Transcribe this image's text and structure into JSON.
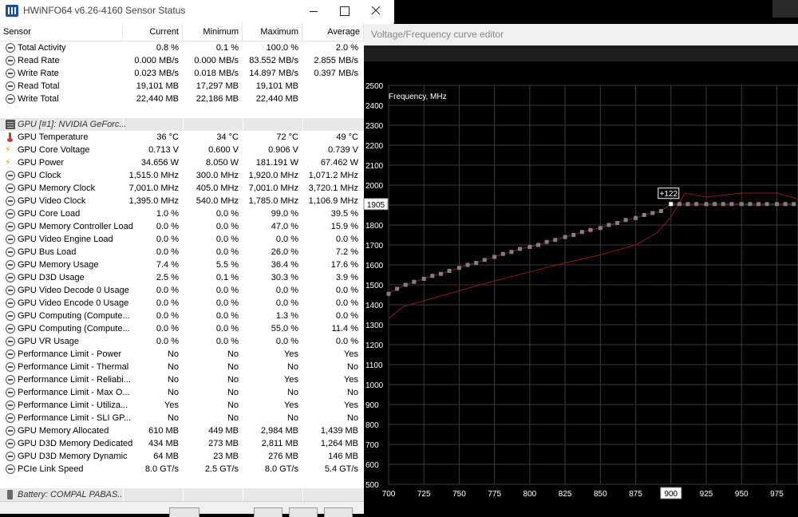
{
  "hwinfo": {
    "title": "HWiNFO64 v6.26-4160 Sensor Status",
    "columns": [
      "Sensor",
      "Current",
      "Minimum",
      "Maximum",
      "Average"
    ],
    "rows": [
      {
        "icon": "clock",
        "name": "Total Activity",
        "cur": "0.8 %",
        "min": "0.1 %",
        "max": "100.0 %",
        "avg": "2.0 %"
      },
      {
        "icon": "clock",
        "name": "Read Rate",
        "cur": "0.000 MB/s",
        "min": "0.000 MB/s",
        "max": "83.552 MB/s",
        "avg": "2.855 MB/s"
      },
      {
        "icon": "clock",
        "name": "Write Rate",
        "cur": "0.023 MB/s",
        "min": "0.018 MB/s",
        "max": "14.897 MB/s",
        "avg": "0.397 MB/s"
      },
      {
        "icon": "clock",
        "name": "Read Total",
        "cur": "19,101 MB",
        "min": "17,297 MB",
        "max": "19,101 MB",
        "avg": ""
      },
      {
        "icon": "clock",
        "name": "Write Total",
        "cur": "22,440 MB",
        "min": "22,186 MB",
        "max": "22,440 MB",
        "avg": ""
      },
      {
        "type": "gap"
      },
      {
        "type": "section",
        "icon": "gpu",
        "name": "GPU [#1]: NVIDIA GeForc..."
      },
      {
        "icon": "therm",
        "name": "GPU Temperature",
        "cur": "36 °C",
        "min": "34 °C",
        "max": "72 °C",
        "avg": "49 °C"
      },
      {
        "icon": "bolt",
        "name": "GPU Core Voltage",
        "cur": "0.713 V",
        "min": "0.600 V",
        "max": "0.906 V",
        "avg": "0.739 V"
      },
      {
        "icon": "bolt",
        "name": "GPU Power",
        "cur": "34.656 W",
        "min": "8.050 W",
        "max": "181.191 W",
        "avg": "67.462 W"
      },
      {
        "icon": "clock",
        "name": "GPU Clock",
        "cur": "1,515.0 MHz",
        "min": "300.0 MHz",
        "max": "1,920.0 MHz",
        "avg": "1,071.2 MHz"
      },
      {
        "icon": "clock",
        "name": "GPU Memory Clock",
        "cur": "7,001.0 MHz",
        "min": "405.0 MHz",
        "max": "7,001.0 MHz",
        "avg": "3,720.1 MHz"
      },
      {
        "icon": "clock",
        "name": "GPU Video Clock",
        "cur": "1,395.0 MHz",
        "min": "540.0 MHz",
        "max": "1,785.0 MHz",
        "avg": "1,106.9 MHz"
      },
      {
        "icon": "clock",
        "name": "GPU Core Load",
        "cur": "1.0 %",
        "min": "0.0 %",
        "max": "99.0 %",
        "avg": "39.5 %"
      },
      {
        "icon": "clock",
        "name": "GPU Memory Controller Load",
        "cur": "0.0 %",
        "min": "0.0 %",
        "max": "47.0 %",
        "avg": "15.9 %"
      },
      {
        "icon": "clock",
        "name": "GPU Video Engine Load",
        "cur": "0.0 %",
        "min": "0.0 %",
        "max": "0.0 %",
        "avg": "0.0 %"
      },
      {
        "icon": "clock",
        "name": "GPU Bus Load",
        "cur": "0.0 %",
        "min": "0.0 %",
        "max": "26.0 %",
        "avg": "7.2 %"
      },
      {
        "icon": "clock",
        "name": "GPU Memory Usage",
        "cur": "7.4 %",
        "min": "5.5 %",
        "max": "36.4 %",
        "avg": "17.6 %"
      },
      {
        "icon": "clock",
        "name": "GPU D3D Usage",
        "cur": "2.5 %",
        "min": "0.1 %",
        "max": "30.3 %",
        "avg": "3.9 %"
      },
      {
        "icon": "clock",
        "name": "GPU Video Decode 0 Usage",
        "cur": "0.0 %",
        "min": "0.0 %",
        "max": "0.0 %",
        "avg": "0.0 %"
      },
      {
        "icon": "clock",
        "name": "GPU Video Encode 0 Usage",
        "cur": "0.0 %",
        "min": "0.0 %",
        "max": "0.0 %",
        "avg": "0.0 %"
      },
      {
        "icon": "clock",
        "name": "GPU Computing (Compute...",
        "cur": "0.0 %",
        "min": "0.0 %",
        "max": "1.3 %",
        "avg": "0.0 %"
      },
      {
        "icon": "clock",
        "name": "GPU Computing (Compute...",
        "cur": "0.0 %",
        "min": "0.0 %",
        "max": "55.0 %",
        "avg": "11.4 %"
      },
      {
        "icon": "clock",
        "name": "GPU VR Usage",
        "cur": "0.0 %",
        "min": "0.0 %",
        "max": "0.0 %",
        "avg": "0.0 %"
      },
      {
        "icon": "clock",
        "name": "Performance Limit - Power",
        "cur": "No",
        "min": "No",
        "max": "Yes",
        "avg": "Yes"
      },
      {
        "icon": "clock",
        "name": "Performance Limit - Thermal",
        "cur": "No",
        "min": "No",
        "max": "No",
        "avg": "No"
      },
      {
        "icon": "clock",
        "name": "Performance Limit - Reliabi...",
        "cur": "No",
        "min": "No",
        "max": "Yes",
        "avg": "Yes"
      },
      {
        "icon": "clock",
        "name": "Performance Limit - Max O...",
        "cur": "No",
        "min": "No",
        "max": "No",
        "avg": "No"
      },
      {
        "icon": "clock",
        "name": "Performance Limit - Utiliza...",
        "cur": "Yes",
        "min": "No",
        "max": "Yes",
        "avg": "Yes"
      },
      {
        "icon": "clock",
        "name": "Performance Limit - SLI GP...",
        "cur": "No",
        "min": "No",
        "max": "No",
        "avg": "No"
      },
      {
        "icon": "clock",
        "name": "GPU Memory Allocated",
        "cur": "610 MB",
        "min": "449 MB",
        "max": "2,984 MB",
        "avg": "1,439 MB"
      },
      {
        "icon": "clock",
        "name": "GPU D3D Memory Dedicated",
        "cur": "434 MB",
        "min": "273 MB",
        "max": "2,811 MB",
        "avg": "1,264 MB"
      },
      {
        "icon": "clock",
        "name": "GPU D3D Memory Dynamic",
        "cur": "64 MB",
        "min": "23 MB",
        "max": "276 MB",
        "avg": "146 MB"
      },
      {
        "icon": "clock",
        "name": "PCIe Link Speed",
        "cur": "8.0 GT/s",
        "min": "2.5 GT/s",
        "max": "8.0 GT/s",
        "avg": "5.4 GT/s"
      },
      {
        "type": "gap"
      },
      {
        "type": "section",
        "icon": "battery",
        "name": "Battery: COMPAL PABAS..."
      }
    ]
  },
  "vf_editor": {
    "title": "Voltage/Frequency curve editor",
    "colors": {
      "curve_line": "#8b1a1a",
      "point": "#808080",
      "selected_point": "#ffffff",
      "grid": "#3a3a3a"
    }
  },
  "chart_data": {
    "type": "line",
    "ylabel": "Frequency, MHz",
    "xlabel": "",
    "xlim": [
      700,
      990
    ],
    "ylim": [
      500,
      2500
    ],
    "x_ticks": [
      700,
      725,
      750,
      775,
      800,
      825,
      850,
      875,
      900,
      925,
      950,
      975
    ],
    "y_ticks": [
      500,
      600,
      700,
      800,
      900,
      1000,
      1100,
      1200,
      1300,
      1400,
      1500,
      1600,
      1700,
      1800,
      1900,
      2000,
      2100,
      2200,
      2300,
      2400,
      2500
    ],
    "highlighted_y": "1905",
    "highlighted_x": "900",
    "point_label": "+122",
    "reference_line_y": 1500,
    "series": [
      {
        "role": "edited-curve",
        "x": [
          700,
          706,
          712,
          718,
          725,
          731,
          737,
          743,
          750,
          756,
          762,
          768,
          775,
          781,
          787,
          793,
          800,
          806,
          812,
          818,
          825,
          831,
          837,
          843,
          850,
          856,
          862,
          868,
          875,
          881,
          887,
          893,
          900,
          906,
          912,
          918,
          925,
          931,
          937,
          943,
          950,
          956,
          962,
          968,
          975,
          981,
          987
        ],
        "y": [
          1455,
          1480,
          1500,
          1515,
          1530,
          1545,
          1555,
          1570,
          1585,
          1600,
          1610,
          1625,
          1640,
          1655,
          1665,
          1680,
          1690,
          1700,
          1715,
          1725,
          1740,
          1750,
          1765,
          1775,
          1785,
          1800,
          1810,
          1825,
          1835,
          1850,
          1860,
          1870,
          1905,
          1905,
          1905,
          1905,
          1905,
          1905,
          1905,
          1905,
          1905,
          1905,
          1905,
          1905,
          1905,
          1905,
          1905
        ]
      },
      {
        "role": "base-curve",
        "x": [
          700,
          710,
          725,
          750,
          775,
          800,
          825,
          850,
          875,
          890,
          900,
          910,
          925,
          950,
          975,
          990
        ],
        "y": [
          1330,
          1390,
          1420,
          1470,
          1520,
          1565,
          1610,
          1650,
          1700,
          1760,
          1840,
          1960,
          1940,
          1960,
          1960,
          1930
        ]
      }
    ]
  }
}
